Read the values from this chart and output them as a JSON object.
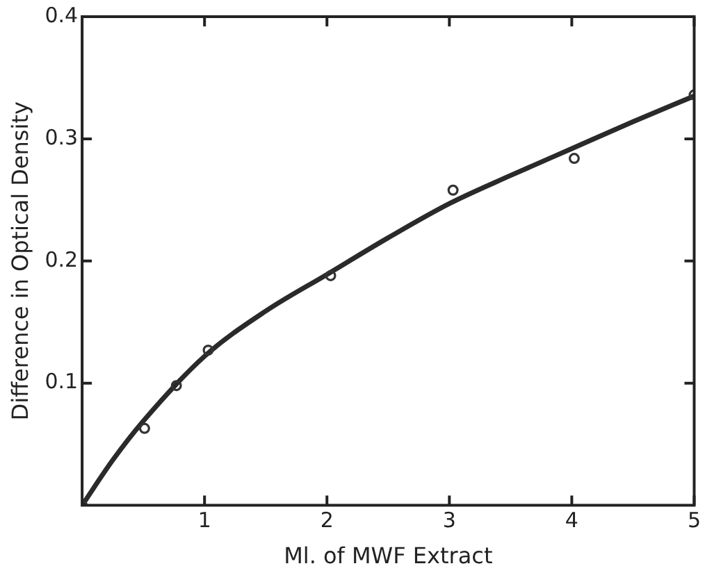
{
  "chart_data": {
    "type": "scatter",
    "xlabel": "Ml. of MWF Extract",
    "ylabel": "Difference in Optical Density",
    "xlim": [
      0,
      5
    ],
    "xticks": [
      1,
      2,
      3,
      4,
      5
    ],
    "ylim": [
      0,
      0.4
    ],
    "yticks": [
      0.1,
      0.2,
      0.3,
      0.4
    ],
    "grid": false,
    "legend": false,
    "series": [
      {
        "color": "#333333",
        "marker": "circle",
        "x": [
          0,
          0.51,
          0.77,
          1.03,
          2.03,
          3.03,
          4.02,
          5
        ],
        "values": [
          0,
          0.063,
          0.098,
          0.127,
          0.188,
          0.258,
          0.284,
          0.336
        ]
      },
      {
        "type": "line",
        "color": "#2a2a2a",
        "marker": "none",
        "line_style": "solid",
        "x": [
          0,
          0.25,
          0.5,
          1,
          1.5,
          2,
          2.5,
          3,
          3.5,
          4,
          4.5,
          5
        ],
        "values": [
          0,
          0.037,
          0.069,
          0.122,
          0.159,
          0.189,
          0.219,
          0.247,
          0.27,
          0.292,
          0.314,
          0.335
        ]
      }
    ]
  }
}
